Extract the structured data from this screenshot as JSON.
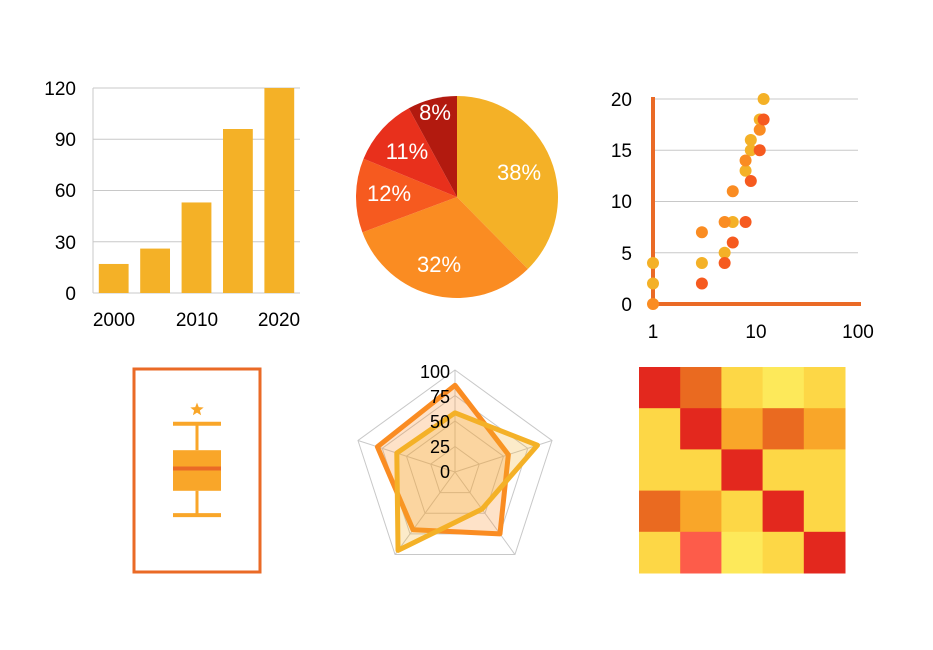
{
  "chart_data": [
    {
      "type": "bar",
      "x": [
        2000,
        2005,
        2010,
        2015,
        2020
      ],
      "values": [
        17,
        26,
        53,
        96,
        120
      ],
      "xticks": [
        "2000",
        "2010",
        "2020"
      ],
      "xlim": [
        1997.5,
        2022.5
      ],
      "yticks": [
        "0",
        "30",
        "60",
        "90",
        "120"
      ],
      "ylim": [
        0,
        120
      ],
      "grid": true,
      "colors": {
        "bar": "#f4b127"
      }
    },
    {
      "type": "pie",
      "values": [
        38,
        32,
        12,
        11,
        8
      ],
      "labels": [
        "38%",
        "32%",
        "12%",
        "11%",
        "8%"
      ],
      "colors": [
        "#f4b127",
        "#fa8c22",
        "#f65a1f",
        "#e8301c",
        "#b21a0f"
      ]
    },
    {
      "type": "scatter",
      "xscale": "log",
      "xlim": [
        1,
        100
      ],
      "ylim": [
        0,
        20
      ],
      "xticks": [
        "1",
        "10",
        "100"
      ],
      "yticks": [
        "0",
        "5",
        "10",
        "15",
        "20"
      ],
      "grid": true,
      "colors": {
        "axis": "#ea6a26"
      },
      "series": [
        {
          "color": "#f4b127",
          "points": [
            [
              1,
              2
            ],
            [
              1,
              4
            ],
            [
              3,
              4
            ],
            [
              5,
              5
            ],
            [
              6,
              8
            ],
            [
              8,
              13
            ],
            [
              9,
              15
            ],
            [
              9,
              16
            ],
            [
              11,
              18
            ],
            [
              12,
              20
            ]
          ]
        },
        {
          "color": "#fa8c22",
          "points": [
            [
              1,
              0
            ],
            [
              3,
              7
            ],
            [
              5,
              8
            ],
            [
              6,
              11
            ],
            [
              8,
              14
            ],
            [
              11,
              17
            ]
          ]
        },
        {
          "color": "#f65a1f",
          "points": [
            [
              3,
              2
            ],
            [
              5,
              4
            ],
            [
              6,
              6
            ],
            [
              8,
              8
            ],
            [
              9,
              12
            ],
            [
              11,
              15
            ],
            [
              12,
              18
            ]
          ]
        }
      ]
    },
    {
      "type": "box",
      "ylim": [
        0,
        100
      ],
      "box": {
        "whisker_low": 28,
        "q1": 40,
        "median": 51,
        "q3": 60,
        "whisker_high": 73,
        "outlier": 80
      },
      "colors": {
        "box": "#f9a629",
        "median": "#ea6a26",
        "frame": "#ea6a26",
        "outlier": "#f9a629"
      }
    },
    {
      "type": "radar",
      "rticks": [
        "0",
        "25",
        "50",
        "75",
        "100"
      ],
      "rlim": [
        0,
        100
      ],
      "series": [
        {
          "color": "#fa8c22",
          "values": [
            85,
            55,
            75,
            70,
            80
          ]
        },
        {
          "color": "#f4b127",
          "values": [
            58,
            85,
            45,
            95,
            60
          ]
        }
      ]
    },
    {
      "type": "heatmap",
      "values": [
        [
          0.95,
          0.75,
          0.45,
          0.15,
          0.45
        ],
        [
          0.45,
          0.95,
          0.6,
          0.75,
          0.6
        ],
        [
          0.45,
          0.45,
          0.95,
          0.45,
          0.45
        ],
        [
          0.75,
          0.6,
          0.45,
          0.95,
          0.45
        ],
        [
          0.45,
          0.85,
          0.15,
          0.45,
          0.95
        ]
      ],
      "colors": {
        "0.15": "#fde95a",
        "0.45": "#fdd746",
        "0.60": "#f9a629",
        "0.75": "#ea6a20",
        "0.85": "#fd5c4a",
        "0.95": "#e3281e"
      }
    }
  ]
}
